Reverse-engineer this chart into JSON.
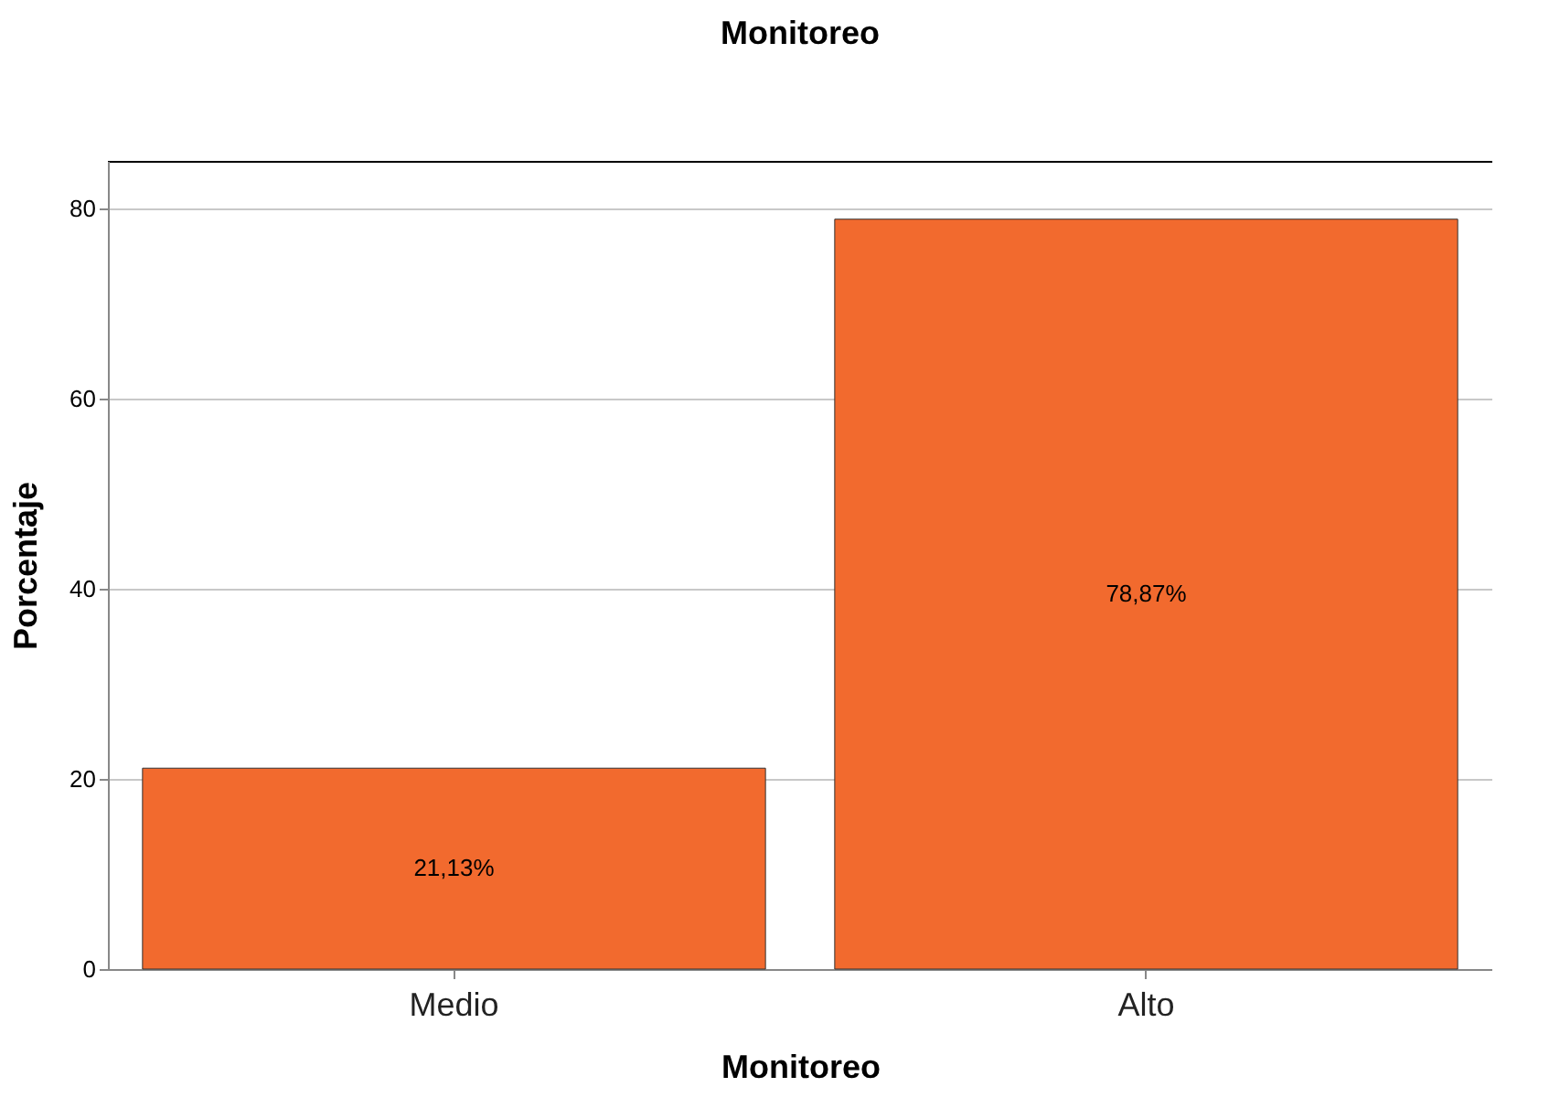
{
  "chart_data": {
    "type": "bar",
    "title": "Monitoreo",
    "xlabel": "Monitoreo",
    "ylabel": "Porcentaje",
    "categories": [
      "Medio",
      "Alto"
    ],
    "values": [
      21.13,
      78.87
    ],
    "value_labels": [
      "21,13%",
      "78,87%"
    ],
    "color": "#f26a2e",
    "ylim": [
      0,
      85
    ],
    "yticks": [
      0,
      20,
      40,
      60,
      80
    ],
    "grid": "y"
  }
}
